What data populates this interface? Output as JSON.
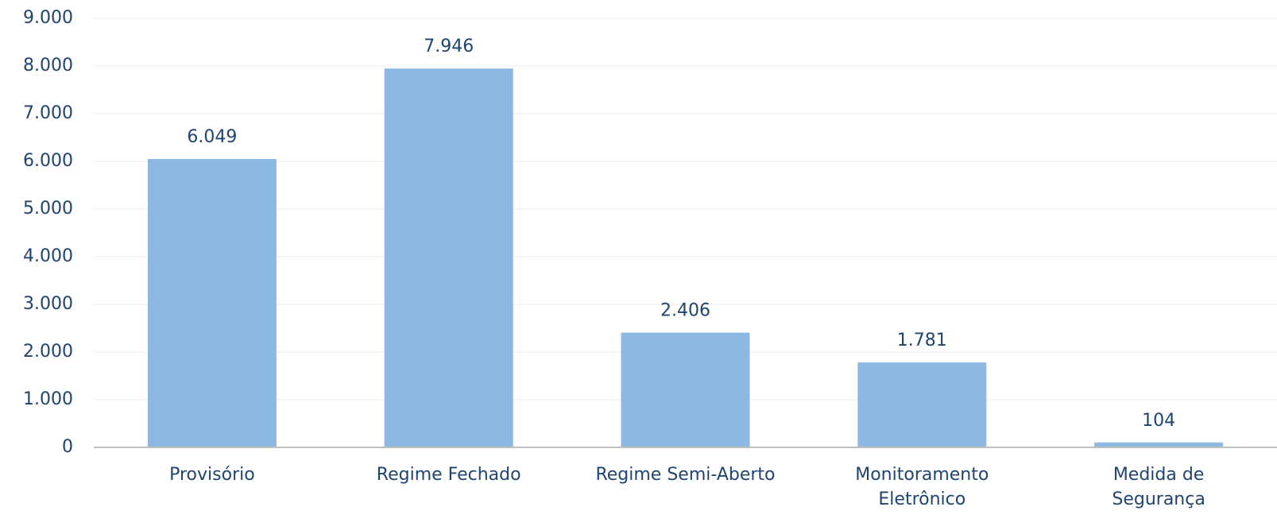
{
  "chart_data": {
    "type": "bar",
    "categories": [
      [
        "Provisório"
      ],
      [
        "Regime Fechado"
      ],
      [
        "Regime Semi-Aberto"
      ],
      [
        "Monitoramento",
        "Eletrônico"
      ],
      [
        "Medida de",
        "Segurança"
      ]
    ],
    "values": [
      6049,
      7946,
      2406,
      1781,
      104
    ],
    "value_labels": [
      "6.049",
      "7.946",
      "2.406",
      "1.781",
      "104"
    ],
    "color": "#8db8e2",
    "ylim": [
      0,
      9000
    ],
    "yticks": [
      0,
      {
        "value": 1000,
        "label": "1.000"
      },
      {
        "value": 2000,
        "label": "2.000"
      },
      {
        "value": 3000,
        "label": "3.000"
      },
      {
        "value": 4000,
        "label": "4.000"
      },
      {
        "value": 5000,
        "label": "5.000"
      },
      {
        "value": 6000,
        "label": "6.000"
      },
      {
        "value": 7000,
        "label": "7.000"
      },
      {
        "value": 8000,
        "label": "8.000"
      },
      {
        "value": 9000,
        "label": "9.000"
      }
    ],
    "grid": true
  }
}
